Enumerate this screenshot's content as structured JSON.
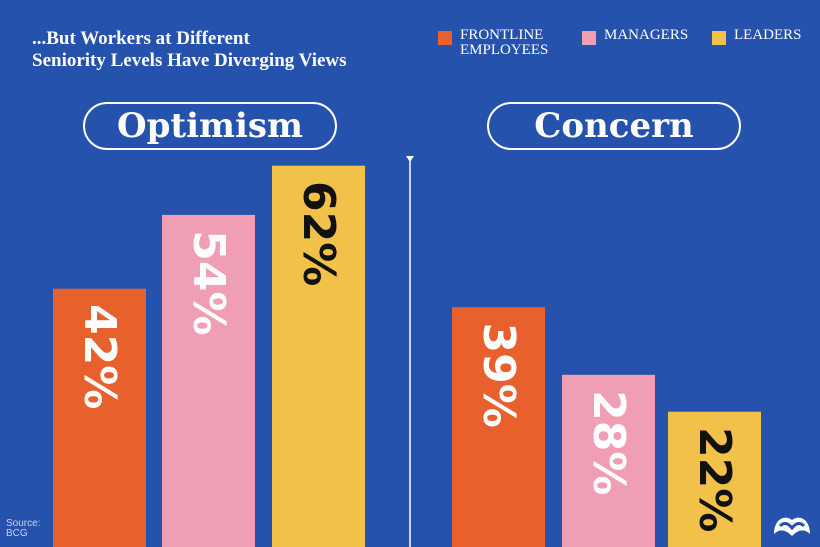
{
  "subtitle_lines": [
    "...But Workers at Different",
    "Seniority Levels Have Diverging Views"
  ],
  "legend": [
    {
      "label": "FRONTLINE EMPLOYEES",
      "color": "#e8602c"
    },
    {
      "label": "MANAGERS",
      "color": "#ef9eb3"
    },
    {
      "label": "LEADERS",
      "color": "#f2c14a"
    }
  ],
  "source": {
    "label": "Source:",
    "name": "BCG"
  },
  "logo_icon": "visual-capitalist-logo-icon",
  "chart_data": [
    {
      "type": "bar",
      "title": "Optimism",
      "categories": [
        "FRONTLINE EMPLOYEES",
        "MANAGERS",
        "LEADERS"
      ],
      "values": [
        42,
        54,
        62
      ],
      "value_labels": [
        "42%",
        "54%",
        "62%"
      ],
      "colors": [
        "#e8602c",
        "#ef9eb3",
        "#f2c14a"
      ],
      "label_colors": [
        "#ffffff",
        "#ffffff",
        "#111111"
      ],
      "unit": "%",
      "grid": false
    },
    {
      "type": "bar",
      "title": "Concern",
      "categories": [
        "FRONTLINE EMPLOYEES",
        "MANAGERS",
        "LEADERS"
      ],
      "values": [
        39,
        28,
        22
      ],
      "value_labels": [
        "39%",
        "28%",
        "22%"
      ],
      "colors": [
        "#e8602c",
        "#ef9eb3",
        "#f2c14a"
      ],
      "label_colors": [
        "#ffffff",
        "#ffffff",
        "#111111"
      ],
      "unit": "%",
      "grid": false
    }
  ]
}
